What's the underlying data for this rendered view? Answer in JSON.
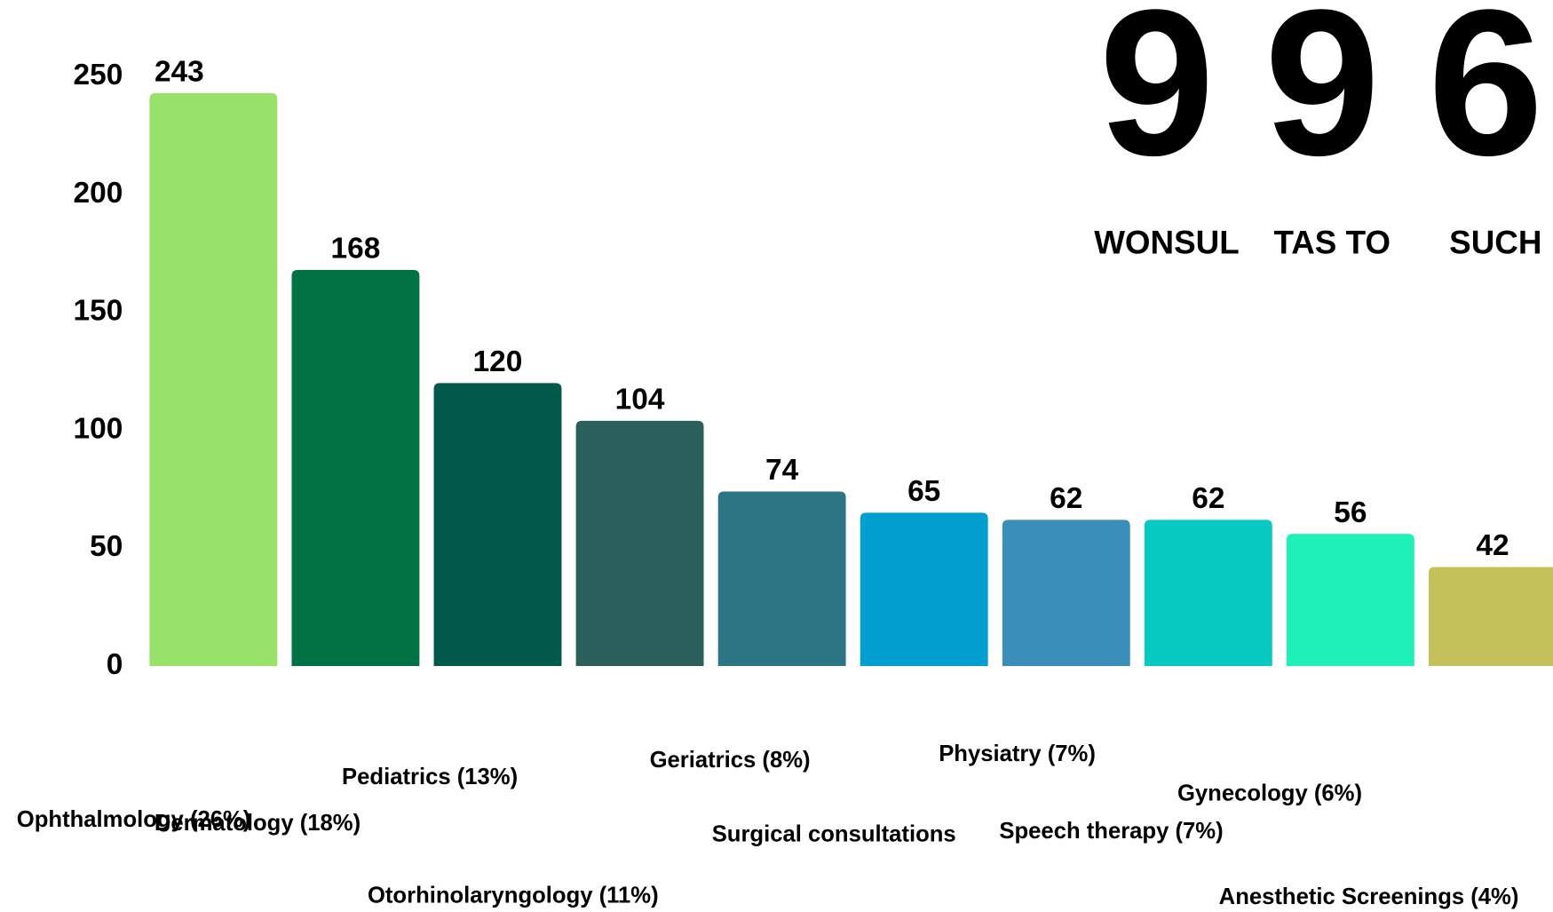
{
  "chart_data": {
    "type": "bar",
    "categories": [
      "Ophthalmology (26%)",
      "Dermatology (18%)",
      "Pediatrics (13%)",
      "Otorhinolaryngology (11%)",
      "Geriatrics (8%)",
      "Surgical consultations",
      "Physiatry (7%)",
      "Speech therapy (7%)",
      "Gynecology (6%)",
      "Anesthetic Screenings (4%)"
    ],
    "values": [
      243,
      168,
      120,
      104,
      74,
      65,
      62,
      62,
      56,
      42
    ],
    "colors": [
      "#98e26a",
      "#007244",
      "#00594a",
      "#2a5f5c",
      "#2b7585",
      "#009fcf",
      "#3a8fba",
      "#08c8c2",
      "#1ef0b8",
      "#c4c05a"
    ],
    "ylim": [
      0,
      250
    ],
    "yticks": [
      0,
      50,
      100,
      150,
      200,
      250
    ],
    "grid": false,
    "kpis": [
      {
        "value": 9,
        "label": "WONSUL"
      },
      {
        "value": 9,
        "label": "TAS TO"
      },
      {
        "value": 6,
        "label": "SUCH"
      }
    ]
  }
}
